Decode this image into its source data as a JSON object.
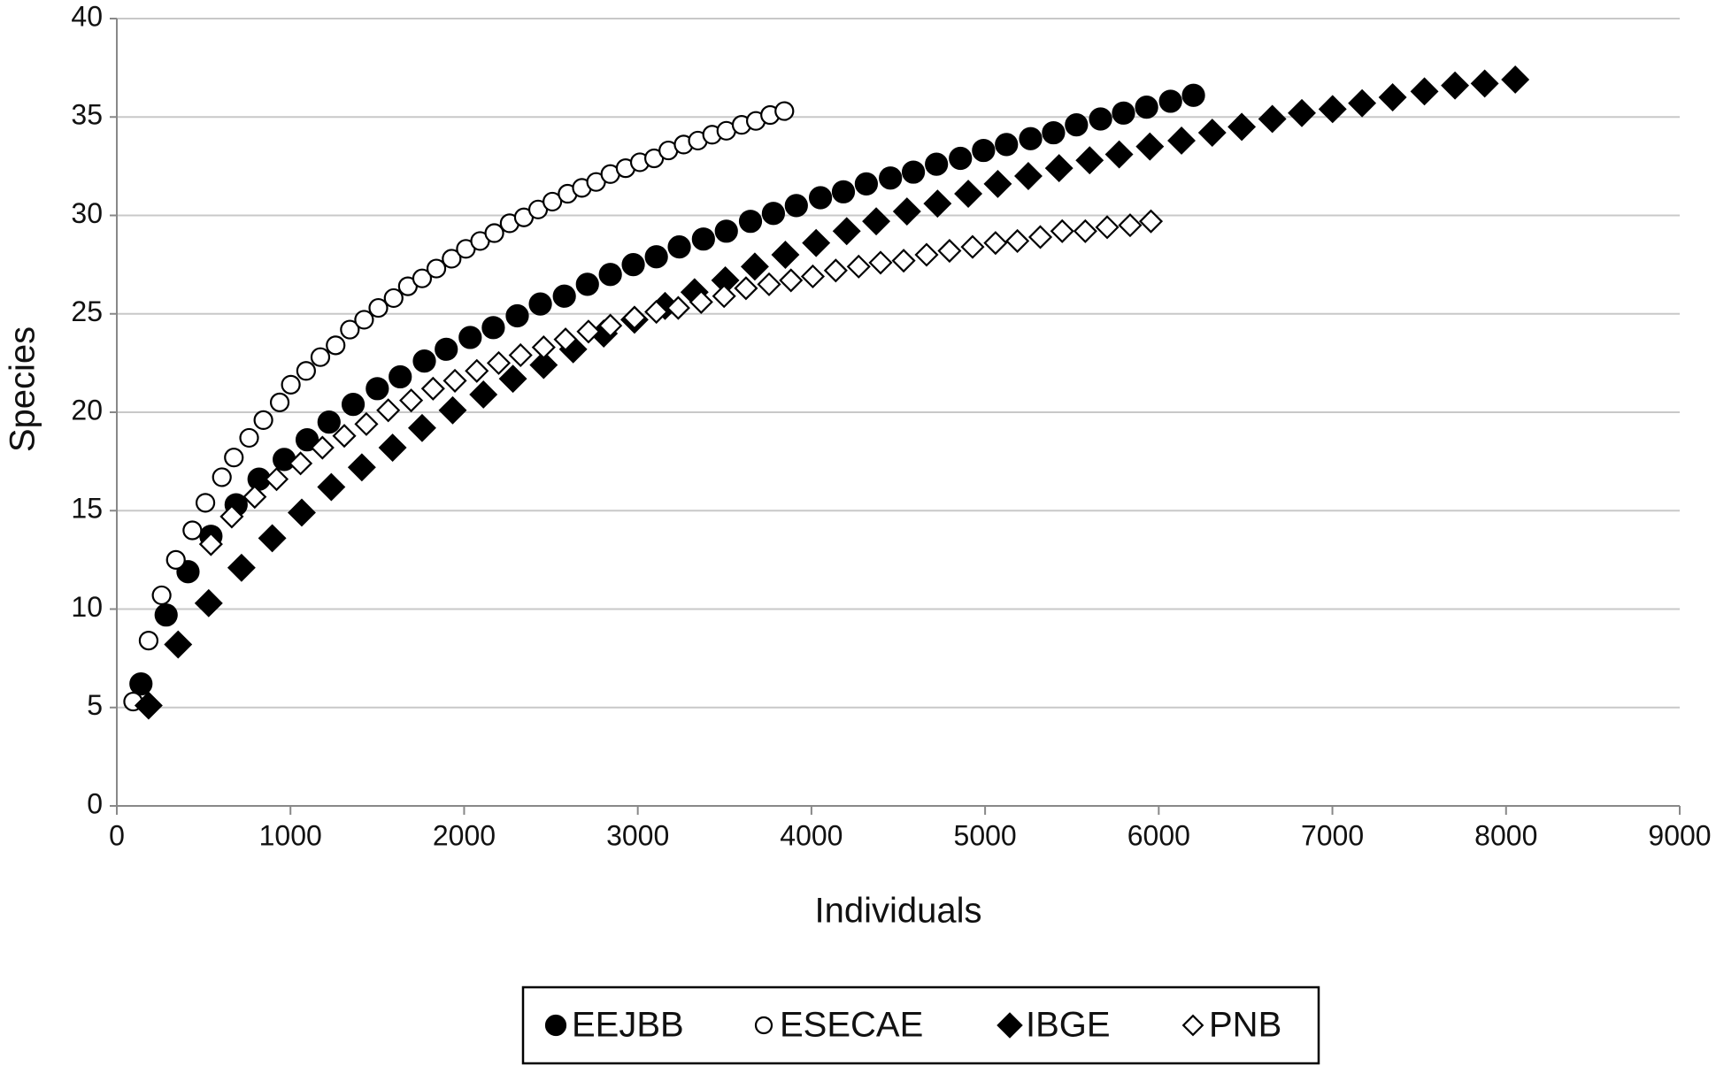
{
  "chart_data": {
    "type": "scatter",
    "xlabel": "Individuals",
    "ylabel": "Species",
    "xlim": [
      0,
      9000
    ],
    "xticks": [
      0,
      1000,
      2000,
      3000,
      4000,
      5000,
      6000,
      7000,
      8000,
      9000
    ],
    "ylim": [
      0,
      40
    ],
    "yticks": [
      0,
      5,
      10,
      15,
      20,
      25,
      30,
      35,
      40
    ],
    "grid": true,
    "legend": "bottom",
    "series": [
      {
        "name": "EEJBB",
        "color": "#000000",
        "marker": "circle",
        "filled": true,
        "x": [
          139,
          284,
          410,
          542,
          687,
          819,
          964,
          1096,
          1222,
          1361,
          1500,
          1632,
          1771,
          1897,
          2035,
          2168,
          2306,
          2439,
          2577,
          2710,
          2842,
          2974,
          3107,
          3239,
          3378,
          3510,
          3649,
          3781,
          3913,
          4052,
          4184,
          4316,
          4455,
          4587,
          4720,
          4858,
          4991,
          5123,
          5262,
          5394,
          5526,
          5665,
          5797,
          5930,
          6068,
          6200
        ],
        "values": [
          6.2,
          9.7,
          11.9,
          13.7,
          15.3,
          16.6,
          17.6,
          18.6,
          19.5,
          20.4,
          21.2,
          21.8,
          22.6,
          23.2,
          23.8,
          24.3,
          24.9,
          25.5,
          25.9,
          26.5,
          27.0,
          27.5,
          27.9,
          28.4,
          28.8,
          29.2,
          29.7,
          30.1,
          30.5,
          30.9,
          31.2,
          31.6,
          31.9,
          32.2,
          32.6,
          32.9,
          33.3,
          33.6,
          33.9,
          34.2,
          34.6,
          34.9,
          35.2,
          35.5,
          35.8,
          36.1
        ]
      },
      {
        "name": "ESECAE",
        "color": "#000000",
        "marker": "circle",
        "filled": false,
        "x": [
          94,
          183,
          258,
          340,
          435,
          510,
          605,
          674,
          762,
          844,
          938,
          1002,
          1090,
          1172,
          1260,
          1342,
          1424,
          1506,
          1594,
          1676,
          1758,
          1840,
          1928,
          2010,
          2092,
          2174,
          2262,
          2344,
          2426,
          2508,
          2596,
          2678,
          2760,
          2842,
          2930,
          3012,
          3094,
          3176,
          3264,
          3346,
          3428,
          3510,
          3598,
          3680,
          3762,
          3844
        ],
        "values": [
          5.3,
          8.4,
          10.7,
          12.5,
          14.0,
          15.4,
          16.7,
          17.7,
          18.7,
          19.6,
          20.5,
          21.4,
          22.1,
          22.8,
          23.4,
          24.2,
          24.7,
          25.3,
          25.8,
          26.4,
          26.8,
          27.3,
          27.8,
          28.3,
          28.7,
          29.1,
          29.6,
          29.9,
          30.3,
          30.7,
          31.1,
          31.4,
          31.7,
          32.1,
          32.4,
          32.7,
          32.9,
          33.3,
          33.6,
          33.8,
          34.1,
          34.3,
          34.6,
          34.8,
          35.1,
          35.3
        ]
      },
      {
        "name": "IBGE",
        "color": "#000000",
        "marker": "diamond",
        "filled": true,
        "x": [
          183,
          353,
          529,
          718,
          895,
          1065,
          1235,
          1411,
          1588,
          1758,
          1934,
          2111,
          2281,
          2458,
          2628,
          2804,
          2981,
          3157,
          3327,
          3504,
          3674,
          3850,
          4027,
          4203,
          4373,
          4550,
          4726,
          4903,
          5073,
          5249,
          5426,
          5602,
          5772,
          5949,
          6131,
          6308,
          6478,
          6654,
          6824,
          7001,
          7171,
          7347,
          7530,
          7706,
          7877,
          8053
        ],
        "values": [
          5.1,
          8.2,
          10.3,
          12.1,
          13.6,
          14.9,
          16.2,
          17.2,
          18.2,
          19.2,
          20.1,
          20.9,
          21.7,
          22.4,
          23.2,
          24.0,
          24.7,
          25.4,
          26.1,
          26.7,
          27.4,
          28.0,
          28.6,
          29.2,
          29.7,
          30.2,
          30.6,
          31.1,
          31.6,
          32.0,
          32.4,
          32.8,
          33.1,
          33.5,
          33.8,
          34.2,
          34.5,
          34.9,
          35.2,
          35.4,
          35.7,
          36.0,
          36.3,
          36.6,
          36.7,
          36.9
        ]
      },
      {
        "name": "PNB",
        "color": "#000000",
        "marker": "diamond",
        "filled": false,
        "x": [
          542,
          662,
          794,
          920,
          1058,
          1184,
          1310,
          1437,
          1563,
          1695,
          1821,
          1947,
          2073,
          2199,
          2325,
          2458,
          2584,
          2716,
          2842,
          2981,
          3107,
          3233,
          3365,
          3497,
          3623,
          3756,
          3882,
          4008,
          4140,
          4272,
          4398,
          4531,
          4663,
          4795,
          4928,
          5060,
          5186,
          5318,
          5444,
          5577,
          5703,
          5835,
          5955
        ],
        "values": [
          13.3,
          14.7,
          15.7,
          16.6,
          17.4,
          18.2,
          18.8,
          19.4,
          20.1,
          20.6,
          21.2,
          21.6,
          22.1,
          22.5,
          22.9,
          23.3,
          23.7,
          24.1,
          24.4,
          24.8,
          25.1,
          25.3,
          25.6,
          25.9,
          26.3,
          26.5,
          26.7,
          26.9,
          27.2,
          27.4,
          27.6,
          27.7,
          28.0,
          28.2,
          28.4,
          28.6,
          28.7,
          28.9,
          29.2,
          29.2,
          29.4,
          29.5,
          29.7
        ]
      }
    ]
  }
}
